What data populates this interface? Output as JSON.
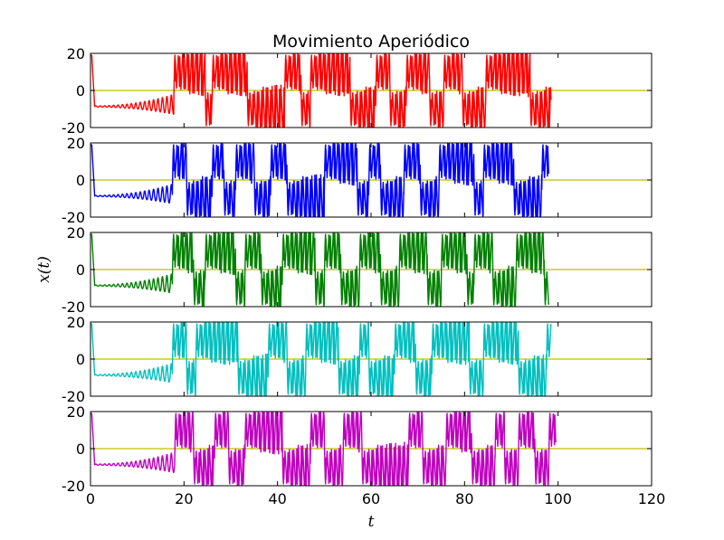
{
  "chart_data": {
    "type": "line",
    "title": "Movimiento Aperiódico",
    "xlabel": "t",
    "ylabel": "x(t)",
    "xlim": [
      0,
      120
    ],
    "ylim": [
      -20,
      20
    ],
    "x_ticks": [
      0,
      20,
      40,
      60,
      80,
      100,
      120
    ],
    "x_tick_labels": [
      "0",
      "20",
      "40",
      "60",
      "80",
      "100",
      "120"
    ],
    "y_ticks": [
      20,
      0,
      -20
    ],
    "y_tick_labels": [
      "20",
      "0",
      "-20"
    ],
    "grid": false,
    "legend": "none",
    "reference_line": {
      "y": 0,
      "color": "#bfbf00"
    },
    "panels": [
      {
        "color": "#ff0000",
        "t_end": 98.5,
        "switches": [
          [
            0,
            0
          ],
          [
            17.8,
            1
          ],
          [
            24.5,
            0
          ],
          [
            26.0,
            1
          ],
          [
            33.5,
            0
          ],
          [
            41.5,
            1
          ],
          [
            45.0,
            0
          ],
          [
            47.0,
            1
          ],
          [
            55.5,
            0
          ],
          [
            61.0,
            1
          ],
          [
            64.0,
            0
          ],
          [
            67.5,
            1
          ],
          [
            72.5,
            0
          ],
          [
            75.5,
            1
          ],
          [
            79.5,
            0
          ],
          [
            84.5,
            1
          ],
          [
            94.0,
            0
          ]
        ]
      },
      {
        "color": "#0000ff",
        "t_end": 98.0,
        "switches": [
          [
            0,
            0
          ],
          [
            17.5,
            1
          ],
          [
            20.5,
            0
          ],
          [
            26.0,
            1
          ],
          [
            28.5,
            0
          ],
          [
            31.0,
            1
          ],
          [
            35.0,
            0
          ],
          [
            38.5,
            1
          ],
          [
            42.0,
            0
          ],
          [
            50.0,
            1
          ],
          [
            57.0,
            0
          ],
          [
            59.5,
            1
          ],
          [
            62.0,
            0
          ],
          [
            67.0,
            1
          ],
          [
            70.5,
            0
          ],
          [
            74.5,
            1
          ],
          [
            82.0,
            0
          ],
          [
            84.0,
            1
          ],
          [
            90.5,
            0
          ],
          [
            96.5,
            1
          ]
        ]
      },
      {
        "color": "#008000",
        "t_end": 98.0,
        "switches": [
          [
            0,
            0
          ],
          [
            17.5,
            1
          ],
          [
            22.0,
            0
          ],
          [
            24.5,
            1
          ],
          [
            31.0,
            0
          ],
          [
            33.0,
            1
          ],
          [
            36.5,
            0
          ],
          [
            41.0,
            1
          ],
          [
            48.0,
            0
          ],
          [
            50.0,
            1
          ],
          [
            53.5,
            0
          ],
          [
            57.5,
            1
          ],
          [
            62.0,
            0
          ],
          [
            66.0,
            1
          ],
          [
            72.0,
            0
          ],
          [
            75.0,
            1
          ],
          [
            80.5,
            0
          ],
          [
            82.0,
            1
          ],
          [
            86.0,
            0
          ],
          [
            91.0,
            1
          ],
          [
            97.0,
            0
          ]
        ]
      },
      {
        "color": "#00bfbf",
        "t_end": 98.5,
        "switches": [
          [
            0,
            0
          ],
          [
            17.5,
            1
          ],
          [
            20.5,
            0
          ],
          [
            22.5,
            1
          ],
          [
            31.5,
            0
          ],
          [
            38.0,
            1
          ],
          [
            42.0,
            0
          ],
          [
            46.0,
            1
          ],
          [
            53.0,
            0
          ],
          [
            57.5,
            1
          ],
          [
            59.5,
            0
          ],
          [
            65.0,
            1
          ],
          [
            69.5,
            0
          ],
          [
            73.0,
            1
          ],
          [
            81.0,
            0
          ],
          [
            84.0,
            1
          ],
          [
            91.5,
            0
          ],
          [
            97.5,
            1
          ]
        ]
      },
      {
        "color": "#bf00bf",
        "t_end": 99.5,
        "switches": [
          [
            0,
            0
          ],
          [
            18.0,
            1
          ],
          [
            22.0,
            0
          ],
          [
            26.5,
            1
          ],
          [
            29.5,
            0
          ],
          [
            33.0,
            1
          ],
          [
            41.0,
            0
          ],
          [
            47.0,
            1
          ],
          [
            50.0,
            0
          ],
          [
            54.0,
            1
          ],
          [
            58.0,
            0
          ],
          [
            68.0,
            1
          ],
          [
            71.0,
            0
          ],
          [
            76.0,
            1
          ],
          [
            81.5,
            0
          ],
          [
            86.5,
            1
          ],
          [
            88.5,
            0
          ],
          [
            91.5,
            1
          ],
          [
            95.0,
            0
          ],
          [
            98.0,
            1
          ]
        ]
      }
    ]
  }
}
